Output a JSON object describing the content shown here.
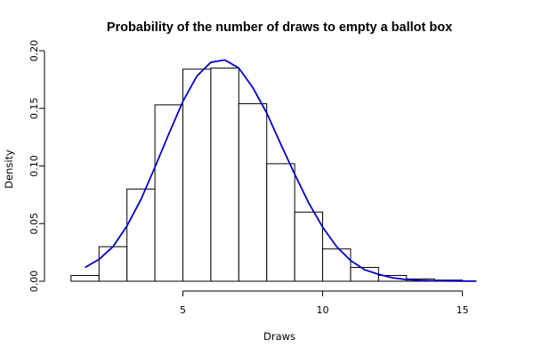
{
  "chart_data": {
    "type": "bar",
    "title": "Probability of the number of draws to empty a ballot box",
    "xlabel": "Draws",
    "ylabel": "Density",
    "xlim": [
      0.4,
      16
    ],
    "ylim": [
      0,
      0.2
    ],
    "x_ticks": [
      5,
      10,
      15
    ],
    "x_tick_labels": [
      "5",
      "10",
      "15"
    ],
    "y_ticks": [
      0,
      0.05,
      0.1,
      0.15,
      0.2
    ],
    "y_tick_labels": [
      "0.00",
      "0.05",
      "0.10",
      "0.15",
      "0.20"
    ],
    "grid": false,
    "bins": [
      {
        "x0": 1,
        "x1": 2,
        "density": 0.005
      },
      {
        "x0": 2,
        "x1": 3,
        "density": 0.03
      },
      {
        "x0": 3,
        "x1": 4,
        "density": 0.08
      },
      {
        "x0": 4,
        "x1": 5,
        "density": 0.153
      },
      {
        "x0": 5,
        "x1": 6,
        "density": 0.184
      },
      {
        "x0": 6,
        "x1": 7,
        "density": 0.185
      },
      {
        "x0": 7,
        "x1": 8,
        "density": 0.154
      },
      {
        "x0": 8,
        "x1": 9,
        "density": 0.102
      },
      {
        "x0": 9,
        "x1": 10,
        "density": 0.06
      },
      {
        "x0": 10,
        "x1": 11,
        "density": 0.028
      },
      {
        "x0": 11,
        "x1": 12,
        "density": 0.012
      },
      {
        "x0": 12,
        "x1": 13,
        "density": 0.005
      },
      {
        "x0": 13,
        "x1": 14,
        "density": 0.002
      },
      {
        "x0": 14,
        "x1": 15,
        "density": 0.001
      }
    ],
    "curve": {
      "color": "#0000cc",
      "x": [
        1.5,
        2,
        2.5,
        3,
        3.5,
        4,
        4.5,
        5,
        5.5,
        6,
        6.5,
        7,
        7.5,
        8,
        8.5,
        9,
        9.5,
        10,
        10.5,
        11,
        11.5,
        12,
        12.5,
        13,
        13.5,
        14,
        14.5,
        15,
        15.5
      ],
      "y": [
        0.012,
        0.019,
        0.03,
        0.048,
        0.071,
        0.099,
        0.128,
        0.156,
        0.178,
        0.19,
        0.192,
        0.185,
        0.168,
        0.146,
        0.119,
        0.093,
        0.068,
        0.047,
        0.03,
        0.018,
        0.01,
        0.006,
        0.003,
        0.0015,
        0.0008,
        0.0004,
        0.0002,
        0.0001,
        0.0001
      ]
    }
  }
}
